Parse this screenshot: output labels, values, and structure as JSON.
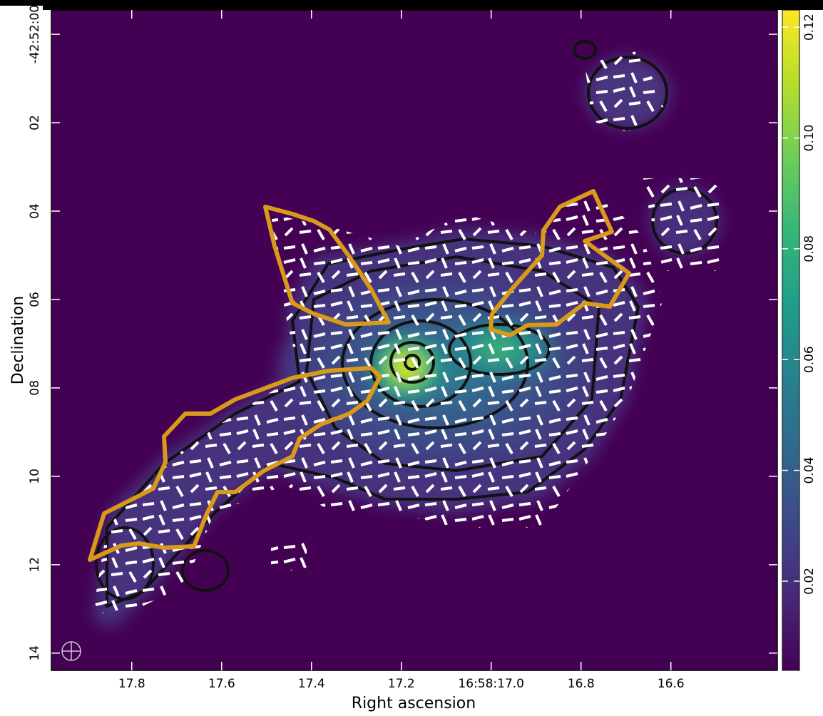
{
  "chart_data": {
    "type": "image",
    "xlabel": "Right ascension",
    "ylabel": "Declination",
    "xlim": [
      17.979,
      16.363
    ],
    "ylim": [
      14.39,
      -0.55
    ],
    "xticks": [
      17.8,
      17.6,
      17.4,
      17.2,
      {
        "value": 17.0,
        "label": "16:58:17.0"
      },
      16.8,
      16.6
    ],
    "yticks": [
      {
        "value": 0,
        "label": "-42:52:00"
      },
      {
        "value": 2,
        "label": "02"
      },
      {
        "value": 4,
        "label": "04"
      },
      {
        "value": 6,
        "label": "06"
      },
      {
        "value": 8,
        "label": "08"
      },
      10,
      12,
      14
    ],
    "colorbar": {
      "colormap": "viridis",
      "clim": [
        0.0039,
        0.1231
      ],
      "ticks": [
        0.02,
        0.04,
        0.06,
        0.08,
        {
          "value": 0.1,
          "label": "0.10"
        },
        0.12
      ]
    }
  }
}
